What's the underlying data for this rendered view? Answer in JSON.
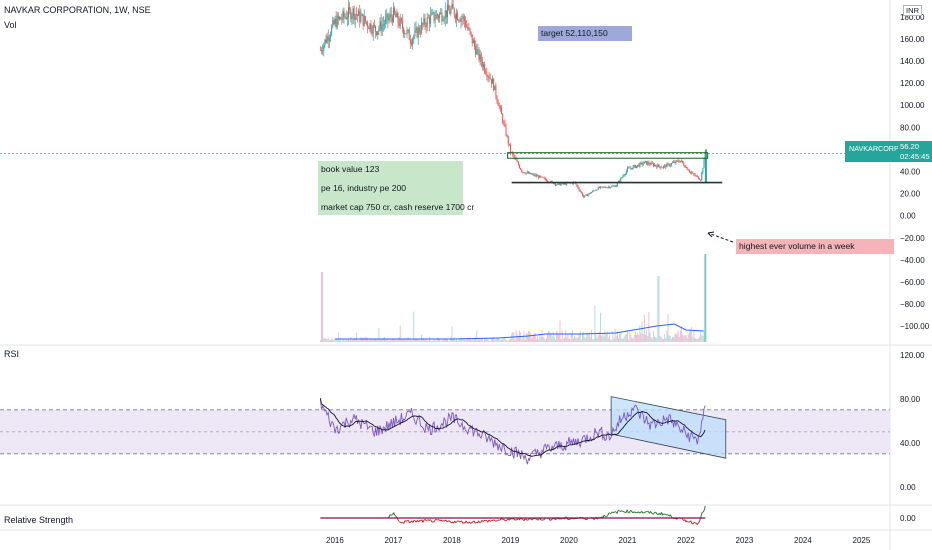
{
  "header": {
    "symbol_line": "NAVKAR CORPORATION, 1W, NSE",
    "vol_label": "Vol",
    "currency": "INR"
  },
  "price_badge": {
    "name": "NAVKARCORP",
    "value": "56.20",
    "timer": "02:45:45",
    "color": "#26a69a"
  },
  "annotations": {
    "target": "target 52,110,150",
    "fundamentals": [
      "book value 123",
      "pe 16, industry pe 200",
      "market cap 750 cr, cash reserve 1700 cr"
    ],
    "volume_note": "highest ever volume in a week"
  },
  "panes": {
    "rsi_label": "RSI",
    "rs_label": "Relative Strength"
  },
  "colors": {
    "up": "#26a69a",
    "down": "#ef5350",
    "rsi_line": "#7e57c2",
    "rsi_band": "#ede7f6",
    "ma": "#2962ff",
    "target_box": "#9fa8da",
    "note_box": "#c8e6c9",
    "vol_note_box": "#f4b4b8",
    "channel": "#bbdefb"
  },
  "chart_data": [
    {
      "type": "candlestick",
      "title": "NAVKAR CORPORATION, 1W, NSE",
      "x_ticks": [
        "2016",
        "2017",
        "2018",
        "2019",
        "2020",
        "2021",
        "2022",
        "2023",
        "2024",
        "2025"
      ],
      "y_ticks": [
        180,
        160,
        140,
        120,
        100,
        80,
        60,
        40,
        20,
        0,
        -20,
        -40,
        -60,
        -80,
        -100
      ],
      "ylim": [
        -108,
        188
      ],
      "last_price": 56.2,
      "support_level": 30,
      "resistance_level": 52,
      "price_path": [
        {
          "x": 2015.75,
          "y": 150
        },
        {
          "x": 2016.0,
          "y": 175
        },
        {
          "x": 2016.3,
          "y": 185
        },
        {
          "x": 2016.7,
          "y": 168
        },
        {
          "x": 2017.0,
          "y": 182
        },
        {
          "x": 2017.3,
          "y": 160
        },
        {
          "x": 2017.6,
          "y": 178
        },
        {
          "x": 2018.0,
          "y": 186
        },
        {
          "x": 2018.2,
          "y": 178
        },
        {
          "x": 2018.45,
          "y": 145
        },
        {
          "x": 2018.7,
          "y": 120
        },
        {
          "x": 2018.85,
          "y": 90
        },
        {
          "x": 2019.0,
          "y": 58
        },
        {
          "x": 2019.2,
          "y": 40
        },
        {
          "x": 2019.5,
          "y": 35
        },
        {
          "x": 2019.8,
          "y": 28
        },
        {
          "x": 2020.1,
          "y": 30
        },
        {
          "x": 2020.25,
          "y": 17
        },
        {
          "x": 2020.5,
          "y": 25
        },
        {
          "x": 2020.8,
          "y": 27
        },
        {
          "x": 2021.0,
          "y": 42
        },
        {
          "x": 2021.3,
          "y": 48
        },
        {
          "x": 2021.6,
          "y": 44
        },
        {
          "x": 2021.9,
          "y": 50
        },
        {
          "x": 2022.1,
          "y": 38
        },
        {
          "x": 2022.25,
          "y": 33
        },
        {
          "x": 2022.33,
          "y": 56.2
        }
      ],
      "volume_spike_at": 2022.33
    },
    {
      "type": "line",
      "name": "RSI",
      "y_ticks": [
        120,
        80,
        40,
        0
      ],
      "ylim": [
        -12,
        128
      ],
      "band": [
        30,
        70
      ],
      "mid": 50,
      "values": [
        {
          "x": 2015.75,
          "y": 76
        },
        {
          "x": 2016.0,
          "y": 52
        },
        {
          "x": 2016.3,
          "y": 62
        },
        {
          "x": 2016.7,
          "y": 50
        },
        {
          "x": 2017.0,
          "y": 58
        },
        {
          "x": 2017.3,
          "y": 66
        },
        {
          "x": 2017.6,
          "y": 52
        },
        {
          "x": 2018.0,
          "y": 62
        },
        {
          "x": 2018.4,
          "y": 50
        },
        {
          "x": 2018.8,
          "y": 38
        },
        {
          "x": 2019.0,
          "y": 33
        },
        {
          "x": 2019.3,
          "y": 26
        },
        {
          "x": 2019.6,
          "y": 34
        },
        {
          "x": 2019.9,
          "y": 38
        },
        {
          "x": 2020.2,
          "y": 42
        },
        {
          "x": 2020.5,
          "y": 50
        },
        {
          "x": 2020.7,
          "y": 46
        },
        {
          "x": 2020.9,
          "y": 62
        },
        {
          "x": 2021.1,
          "y": 72
        },
        {
          "x": 2021.4,
          "y": 56
        },
        {
          "x": 2021.7,
          "y": 62
        },
        {
          "x": 2022.0,
          "y": 48
        },
        {
          "x": 2022.2,
          "y": 42
        },
        {
          "x": 2022.33,
          "y": 70
        }
      ]
    },
    {
      "type": "line",
      "name": "Relative Strength",
      "y_ticks": [
        0
      ],
      "values": [
        {
          "x": 2015.75,
          "y": 0
        },
        {
          "x": 2016.9,
          "y": 0
        },
        {
          "x": 2017.0,
          "y": 4
        },
        {
          "x": 2017.1,
          "y": -3
        },
        {
          "x": 2017.6,
          "y": -2
        },
        {
          "x": 2018.3,
          "y": -3
        },
        {
          "x": 2019.0,
          "y": -1
        },
        {
          "x": 2020.5,
          "y": 0
        },
        {
          "x": 2020.7,
          "y": 3
        },
        {
          "x": 2020.9,
          "y": 5
        },
        {
          "x": 2021.3,
          "y": 4
        },
        {
          "x": 2021.6,
          "y": 3
        },
        {
          "x": 2022.0,
          "y": -2
        },
        {
          "x": 2022.2,
          "y": -4
        },
        {
          "x": 2022.33,
          "y": 8
        }
      ]
    }
  ]
}
